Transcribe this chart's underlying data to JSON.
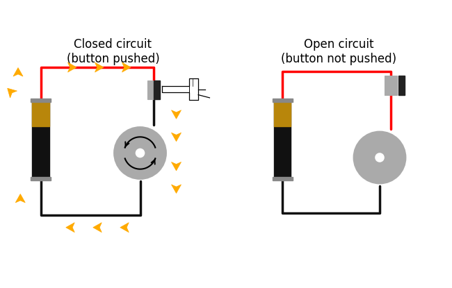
{
  "title_left": "Closed circuit\n(button pushed)",
  "title_right": "Open circuit\n(button not pushed)",
  "bg_color": "#ffffff",
  "wire_red": "#ff0000",
  "wire_black": "#111111",
  "battery_black": "#111111",
  "battery_gold": "#b8860b",
  "battery_cap": "#888888",
  "button_gray": "#aaaaaa",
  "button_dark": "#222222",
  "motor_gray": "#aaaaaa",
  "motor_outline": "#888888",
  "arrow_color": "#ffaa00",
  "title_fontsize": 12
}
